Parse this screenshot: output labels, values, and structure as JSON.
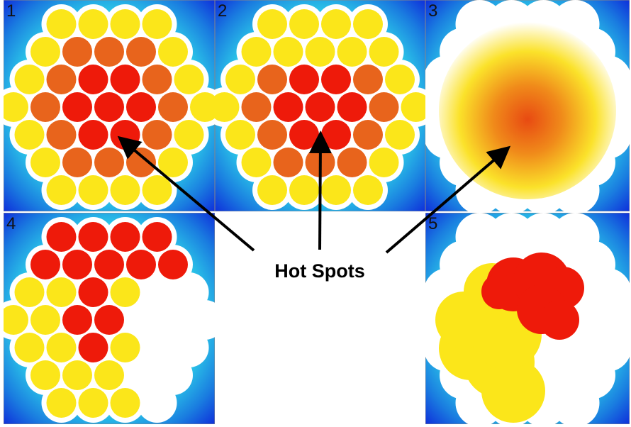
{
  "panels": [
    {
      "label": "1"
    },
    {
      "label": "2"
    },
    {
      "label": "3"
    },
    {
      "label": "4"
    },
    {
      "label": "5"
    }
  ],
  "annotation": "Hot Spots"
}
